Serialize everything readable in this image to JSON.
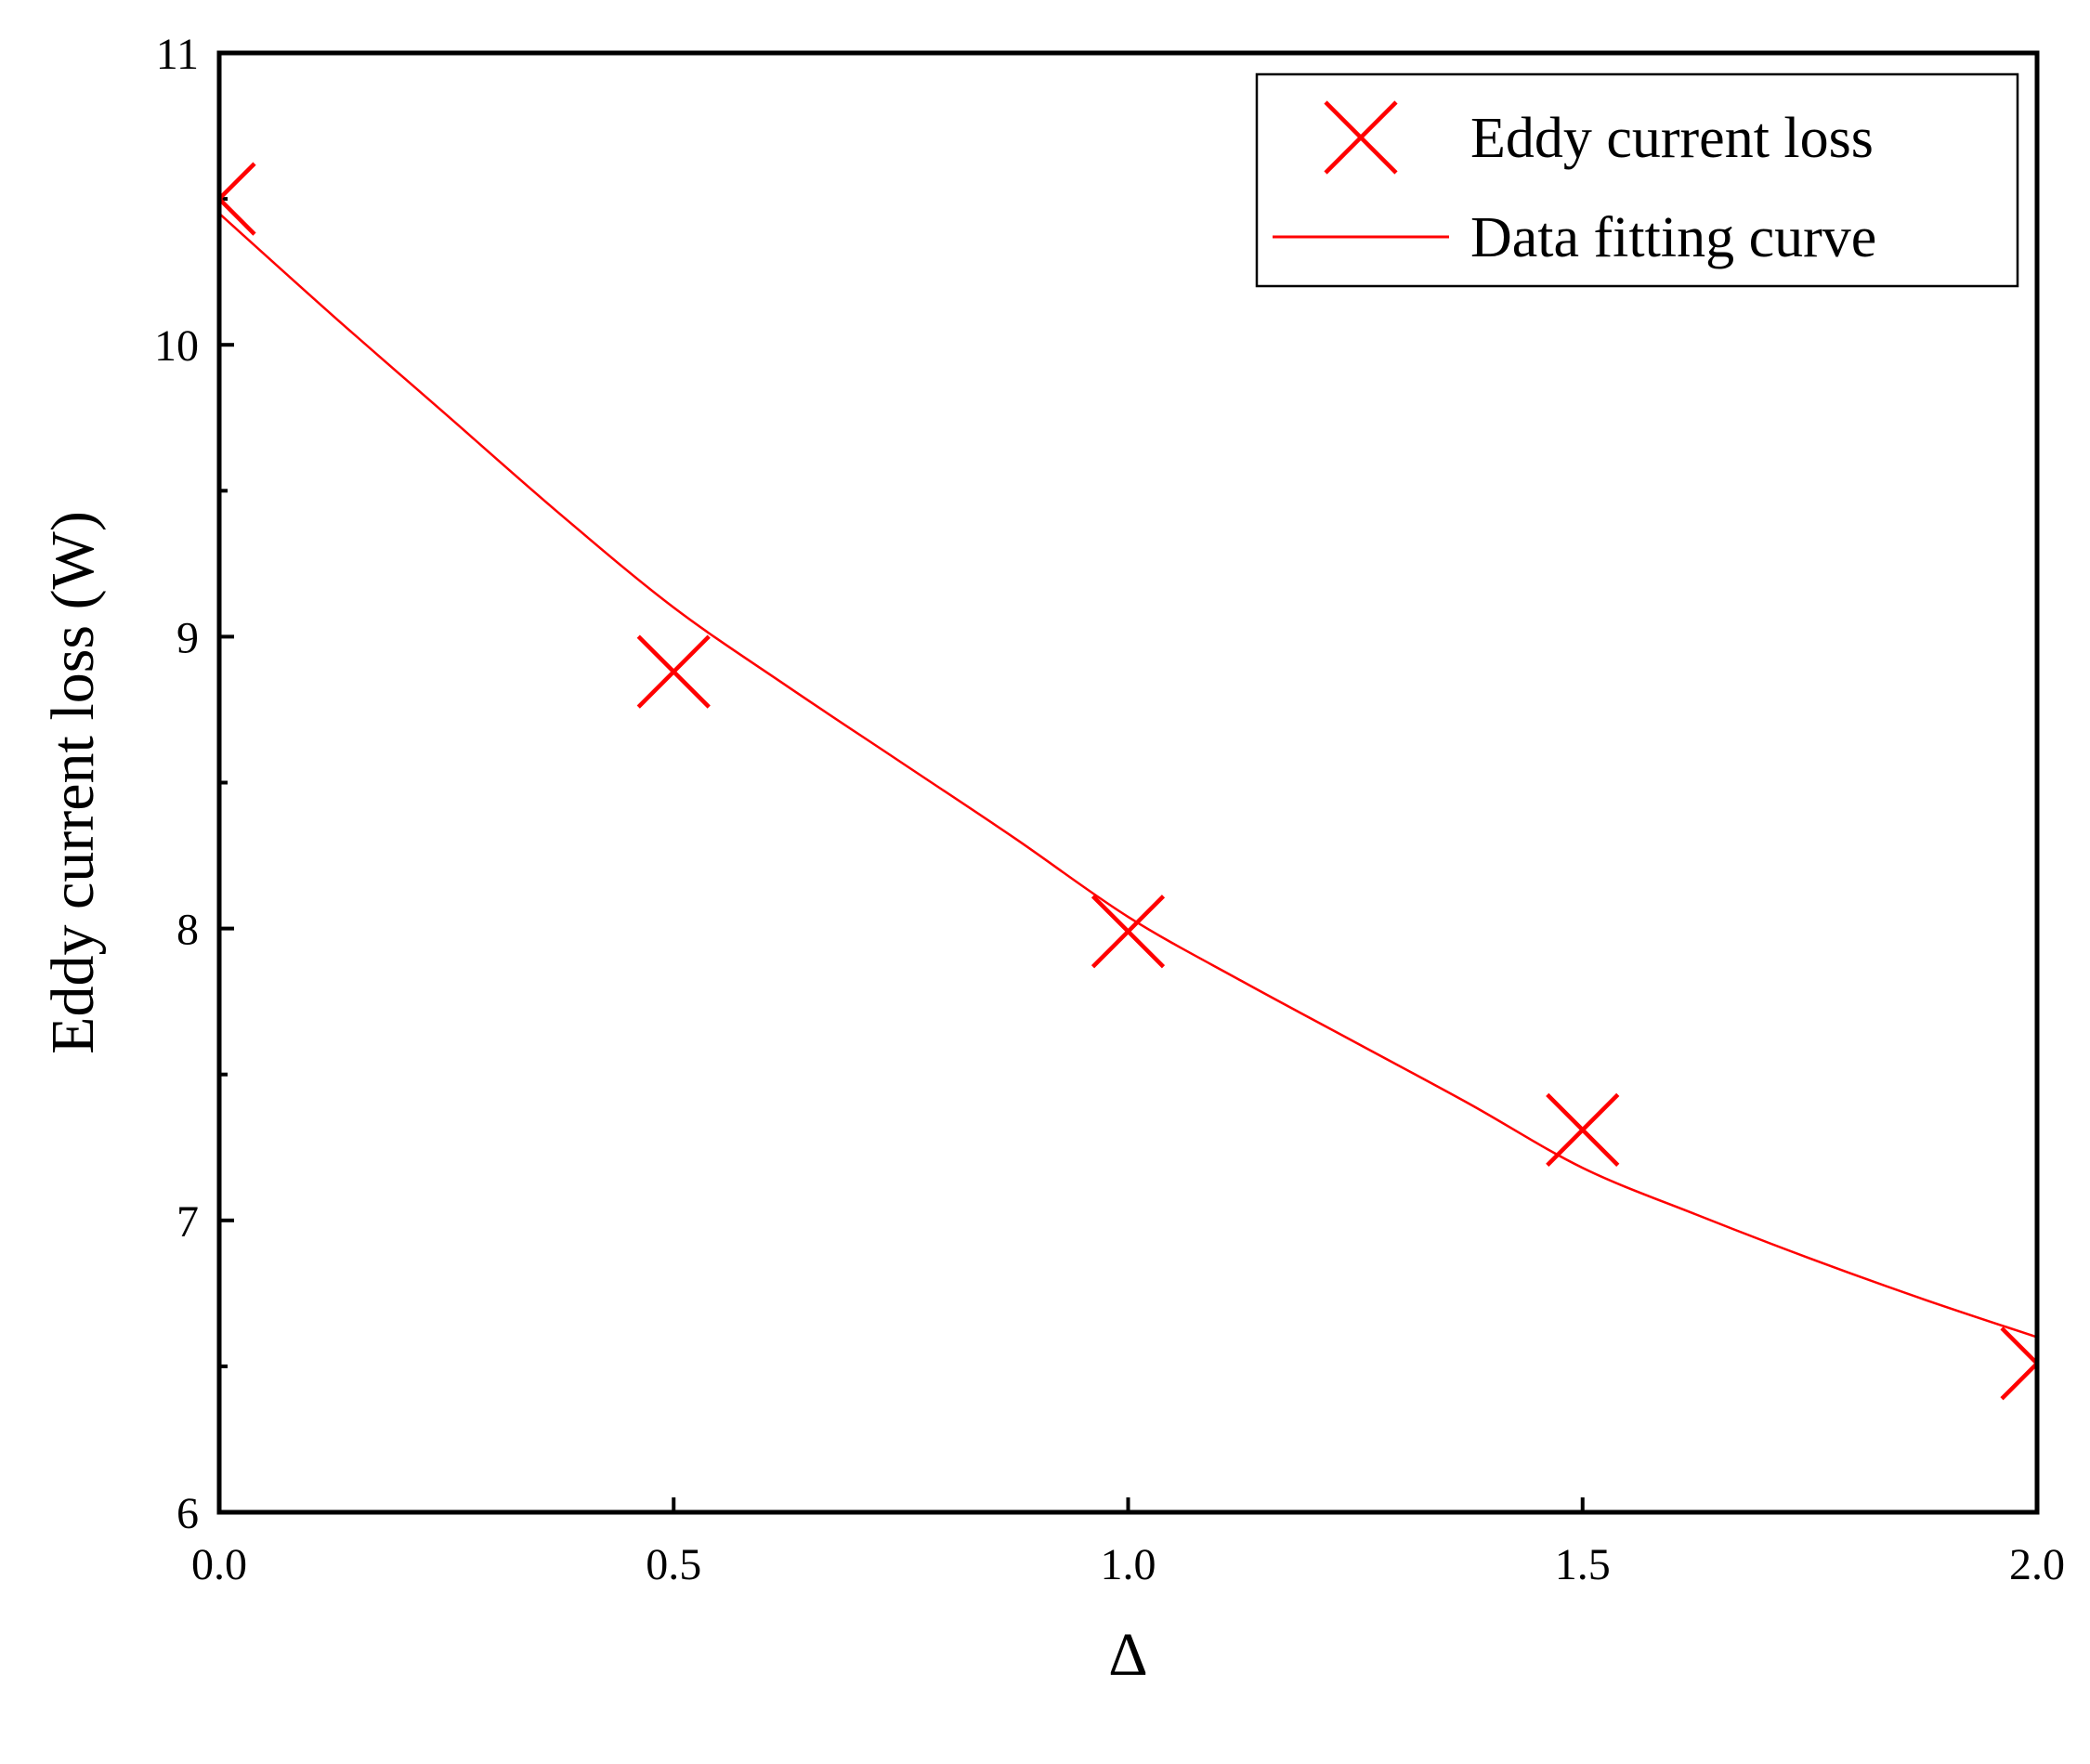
{
  "chart_data": {
    "type": "scatter",
    "xlabel": "Δ",
    "ylabel": "Eddy current loss (W)",
    "xlim": [
      0,
      2
    ],
    "ylim": [
      6,
      11
    ],
    "x_ticks": [
      0,
      0.5,
      1,
      1.5,
      2
    ],
    "x_tick_labels": [
      "0.0",
      "0.5",
      "1.0",
      "1.5",
      "2.0"
    ],
    "y_ticks": [
      6,
      7,
      8,
      9,
      10,
      11
    ],
    "y_tick_labels": [
      "6",
      "7",
      "8",
      "9",
      "10",
      "11"
    ],
    "y_minor_step": 0.5,
    "grid": false,
    "legend": {
      "position": "top-right"
    },
    "series": [
      {
        "name": "Eddy current loss",
        "kind": "markers",
        "marker": "x",
        "color": "#ff0000",
        "x": [
          0,
          0.5,
          1,
          1.5,
          2
        ],
        "y": [
          10.5,
          8.88,
          7.99,
          7.31,
          6.51
        ]
      },
      {
        "name": "Data fitting curve",
        "kind": "line",
        "color": "#ff0000",
        "x": [
          0,
          0.125,
          0.25,
          0.375,
          0.5,
          0.625,
          0.75,
          0.875,
          1,
          1.125,
          1.25,
          1.375,
          1.5,
          1.625,
          1.75,
          1.875,
          2
        ],
        "y": [
          10.45,
          10.1,
          9.76,
          9.42,
          9.1,
          8.83,
          8.57,
          8.31,
          8.04,
          7.82,
          7.61,
          7.4,
          7.18,
          7.02,
          6.87,
          6.73,
          6.6
        ]
      }
    ]
  }
}
